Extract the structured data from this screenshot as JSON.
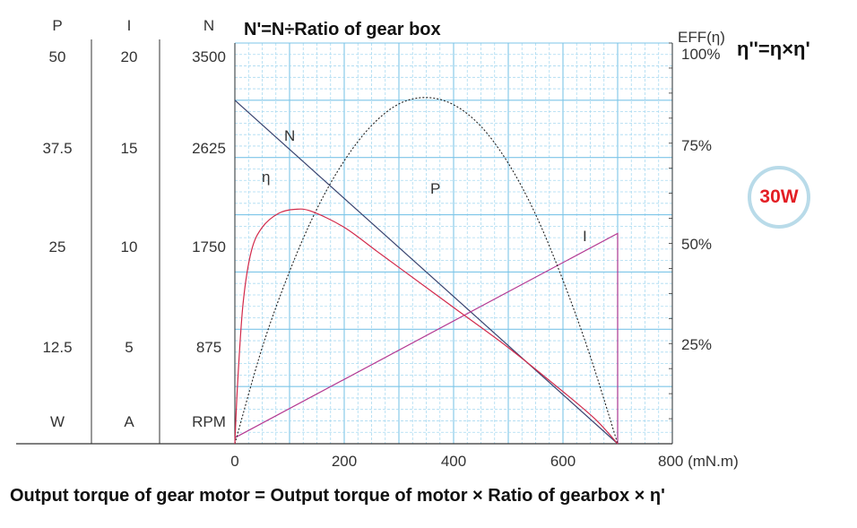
{
  "header": {
    "title": "N'=N÷Ratio of gear box",
    "eff_formula": "η''=η×η'"
  },
  "badge": {
    "label": "30W"
  },
  "footer": {
    "formula": "Output torque of gear motor = Output torque of motor × Ratio of gearbox × η'"
  },
  "chart_data": {
    "type": "line",
    "x": {
      "ticks": [
        "0",
        "200",
        "400",
        "600",
        "800 (mN.m)"
      ],
      "range": [
        0,
        800
      ],
      "unit": "mN.m"
    },
    "left_axes": [
      {
        "header": "P",
        "unit": "W",
        "ticks": [
          "50",
          "37.5",
          "25",
          "12.5"
        ],
        "range": [
          0,
          50
        ]
      },
      {
        "header": "I",
        "unit": "A",
        "ticks": [
          "20",
          "15",
          "10",
          "5"
        ],
        "range": [
          0,
          20
        ]
      },
      {
        "header": "N",
        "unit": "RPM",
        "ticks": [
          "3500",
          "2625",
          "1750",
          "875"
        ],
        "range": [
          0,
          3500
        ]
      }
    ],
    "right_axis": {
      "header": "EFF(η)",
      "ticks": [
        "100%",
        "75%",
        "50%",
        "25%"
      ],
      "range": [
        0,
        100
      ]
    },
    "grid": true,
    "series": [
      {
        "name": "N",
        "unit": "RPM",
        "color": "#3a4470",
        "style": "solid",
        "points": [
          [
            0,
            3000
          ],
          [
            700,
            0
          ]
        ]
      },
      {
        "name": "I",
        "unit": "A",
        "color": "#b43a93",
        "style": "solid",
        "points": [
          [
            0,
            0.3
          ],
          [
            700,
            10.5
          ],
          [
            700,
            0
          ]
        ]
      },
      {
        "name": "P",
        "unit": "W",
        "color": "#222222",
        "style": "dotted",
        "points": [
          [
            0,
            0
          ],
          [
            50,
            12
          ],
          [
            100,
            21.5
          ],
          [
            150,
            29.3
          ],
          [
            200,
            35.3
          ],
          [
            250,
            39.7
          ],
          [
            300,
            42.4
          ],
          [
            350,
            43.2
          ],
          [
            400,
            42.3
          ],
          [
            450,
            39.6
          ],
          [
            500,
            35
          ],
          [
            550,
            28.6
          ],
          [
            600,
            20.4
          ],
          [
            650,
            10.9
          ],
          [
            700,
            0
          ]
        ]
      },
      {
        "name": "η",
        "unit": "%",
        "color": "#d22a4b",
        "style": "solid",
        "points": [
          [
            0,
            0
          ],
          [
            5,
            15
          ],
          [
            15,
            35
          ],
          [
            30,
            48
          ],
          [
            50,
            54
          ],
          [
            80,
            57.5
          ],
          [
            110,
            58.5
          ],
          [
            140,
            58
          ],
          [
            200,
            54
          ],
          [
            260,
            48
          ],
          [
            300,
            44
          ],
          [
            400,
            34
          ],
          [
            500,
            24
          ],
          [
            600,
            13
          ],
          [
            660,
            6
          ],
          [
            700,
            0
          ]
        ]
      }
    ]
  }
}
